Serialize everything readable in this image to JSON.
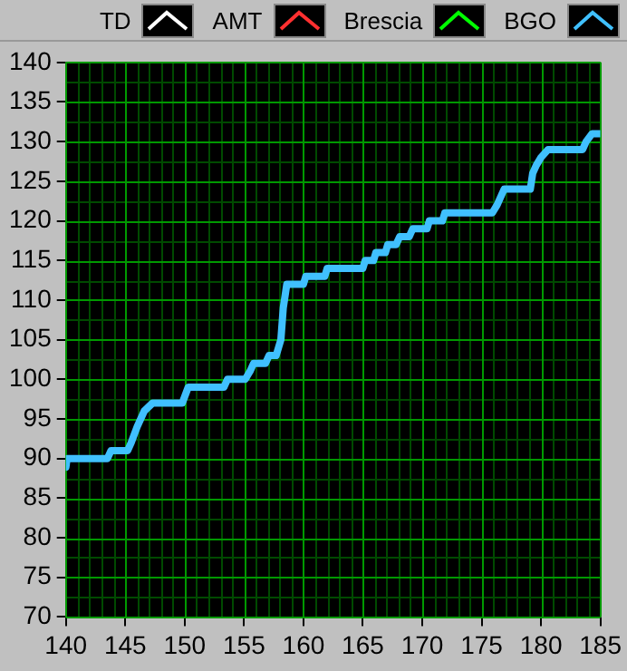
{
  "chart_data": {
    "type": "line",
    "xlim": [
      140,
      185
    ],
    "xticks": [
      140,
      {
        "value": 141,
        "label": null
      },
      {
        "value": 142,
        "label": null
      },
      {
        "value": 143,
        "label": null
      },
      {
        "value": 144,
        "label": null
      },
      145,
      {
        "value": 146,
        "label": null
      },
      {
        "value": 147,
        "label": null
      },
      {
        "value": 148,
        "label": null
      },
      {
        "value": 149,
        "label": null
      },
      150,
      {
        "value": 151,
        "label": null
      },
      {
        "value": 152,
        "label": null
      },
      {
        "value": 153,
        "label": null
      },
      {
        "value": 154,
        "label": null
      },
      155,
      {
        "value": 156,
        "label": null
      },
      {
        "value": 157,
        "label": null
      },
      {
        "value": 158,
        "label": null
      },
      {
        "value": 159,
        "label": null
      },
      160,
      {
        "value": 161,
        "label": null
      },
      {
        "value": 162,
        "label": null
      },
      {
        "value": 163,
        "label": null
      },
      {
        "value": 164,
        "label": null
      },
      165,
      {
        "value": 166,
        "label": null
      },
      {
        "value": 167,
        "label": null
      },
      {
        "value": 168,
        "label": null
      },
      {
        "value": 169,
        "label": null
      },
      170,
      {
        "value": 171,
        "label": null
      },
      {
        "value": 172,
        "label": null
      },
      {
        "value": 173,
        "label": null
      },
      {
        "value": 174,
        "label": null
      },
      175,
      {
        "value": 176,
        "label": null
      },
      {
        "value": 177,
        "label": null
      },
      {
        "value": 178,
        "label": null
      },
      {
        "value": 179,
        "label": null
      },
      180,
      {
        "value": 181,
        "label": null
      },
      {
        "value": 182,
        "label": null
      },
      {
        "value": 183,
        "label": null
      },
      {
        "value": 184,
        "label": null
      },
      185
    ],
    "ylim": [
      70,
      140
    ],
    "yticks": [
      70,
      {
        "value": 72.5,
        "label": null
      },
      75,
      {
        "value": 77.5,
        "label": null
      },
      80,
      {
        "value": 82.5,
        "label": null
      },
      85,
      {
        "value": 87.5,
        "label": null
      },
      90,
      {
        "value": 92.5,
        "label": null
      },
      95,
      {
        "value": 97.5,
        "label": null
      },
      100,
      {
        "value": 102.5,
        "label": null
      },
      105,
      {
        "value": 107.5,
        "label": null
      },
      110,
      {
        "value": 112.5,
        "label": null
      },
      115,
      {
        "value": 117.5,
        "label": null
      },
      120,
      {
        "value": 122.5,
        "label": null
      },
      125,
      {
        "value": 127.5,
        "label": null
      },
      130,
      {
        "value": 132.5,
        "label": null
      },
      135,
      {
        "value": 137.5,
        "label": null
      },
      140
    ],
    "grid": true,
    "legend": "top",
    "marker": "none",
    "line_style": "solid",
    "series": [
      {
        "name": "TD",
        "color": "#ffffff"
      },
      {
        "name": "AMT",
        "color": "#ff3030"
      },
      {
        "name": "Brescia",
        "color": "#00ff00"
      },
      {
        "name": "BGO",
        "color": "#40c0ff",
        "x": [
          140,
          140.1,
          143.5,
          143.8,
          145.2,
          145.5,
          146,
          146.6,
          147.3,
          149.8,
          150.3,
          153.3,
          153.6,
          155.1,
          155.5,
          155.8,
          156.8,
          157.1,
          157.7,
          158.1,
          158.3,
          158.6,
          160,
          160.2,
          161.8,
          162,
          165,
          165.2,
          165.9,
          166.1,
          166.9,
          167.1,
          167.8,
          168.1,
          168.9,
          169.2,
          170.4,
          170.6,
          171.7,
          171.9,
          175.9,
          176.3,
          176.6,
          176.9,
          179.1,
          179.3,
          179.6,
          180,
          180.6,
          183.5,
          183.8,
          184.3,
          185
        ],
        "values": [
          88.9,
          90,
          90,
          91,
          91,
          92,
          94,
          96,
          97,
          97,
          99,
          99,
          100,
          100,
          101,
          102,
          102,
          103,
          103,
          105,
          109,
          112,
          112,
          113,
          113,
          114,
          114,
          115,
          115,
          116,
          116,
          117,
          117,
          118,
          118,
          119,
          119,
          120,
          120,
          121,
          121,
          122,
          123,
          124,
          124,
          126,
          127,
          128,
          129,
          129,
          130,
          131,
          131
        ]
      }
    ]
  }
}
